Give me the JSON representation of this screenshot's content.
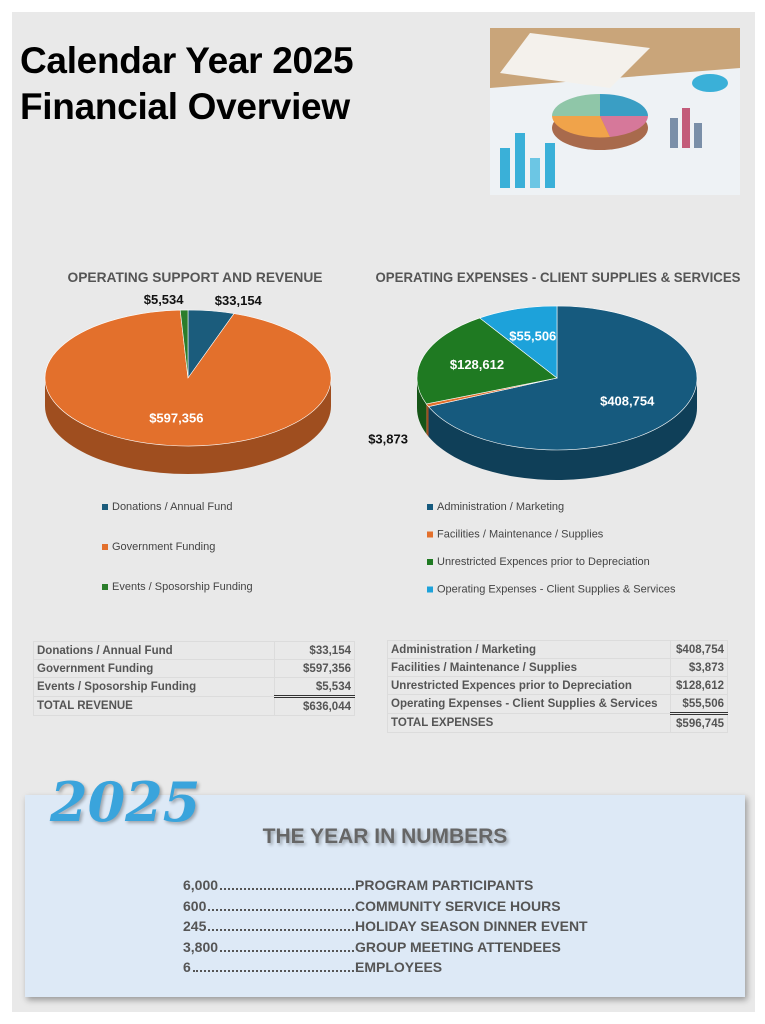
{
  "header": {
    "title_line1": "Calendar Year 2025",
    "title_line2": "Financial Overview"
  },
  "chart_data": [
    {
      "type": "pie",
      "title": "OPERATING SUPPORT AND REVENUE",
      "categories": [
        "Donations / Annual Fund",
        "Government Funding",
        "Events / Sposorship Funding"
      ],
      "values": [
        33154,
        597356,
        5534
      ],
      "value_labels": [
        "$33,154",
        "$597,356",
        "$5,534"
      ],
      "colors": [
        "#1b5c7c",
        "#e3702c",
        "#2b7d2b"
      ]
    },
    {
      "type": "pie",
      "title": "OPERATING EXPENSES - CLIENT SUPPLIES & SERVICES",
      "categories": [
        "Administration / Marketing",
        "Facilities / Maintenance / Supplies",
        "Unrestricted Expences prior to Depreciation",
        "Operating Expenses - Client Supplies & Services"
      ],
      "values": [
        408754,
        3873,
        128612,
        55506
      ],
      "value_labels": [
        "$408,754",
        "$3,873",
        "$128,612",
        "$55,506"
      ],
      "colors": [
        "#165a7e",
        "#e3702c",
        "#1f7a22",
        "#1da2da"
      ]
    }
  ],
  "revenue_table": {
    "rows": [
      [
        "Donations / Annual Fund",
        "$33,154"
      ],
      [
        "Government Funding",
        "$597,356"
      ],
      [
        "Events / Sposorship Funding",
        "$5,534"
      ]
    ],
    "total": [
      "TOTAL REVENUE",
      "$636,044"
    ]
  },
  "expense_table": {
    "rows": [
      [
        "Administration / Marketing",
        "$408,754"
      ],
      [
        "Facilities / Maintenance / Supplies",
        "$3,873"
      ],
      [
        "Unrestricted Expences prior to Depreciation",
        "$128,612"
      ],
      [
        "Operating Expenses - Client Supplies & Services",
        "$55,506"
      ]
    ],
    "total": [
      "TOTAL EXPENSES",
      "$596,745"
    ]
  },
  "year_in_numbers": {
    "badge": "2025",
    "title": "THE YEAR IN NUMBERS",
    "items": [
      {
        "number": "6,000",
        "label": "PROGRAM PARTICIPANTS"
      },
      {
        "number": "600",
        "label": "COMMUNITY SERVICE HOURS"
      },
      {
        "number": "245",
        "label": "HOLIDAY SEASON DINNER EVENT"
      },
      {
        "number": "3,800",
        "label": "GROUP MEETING ATTENDEES"
      },
      {
        "number": "6",
        "label": "EMPLOYEES"
      }
    ]
  }
}
